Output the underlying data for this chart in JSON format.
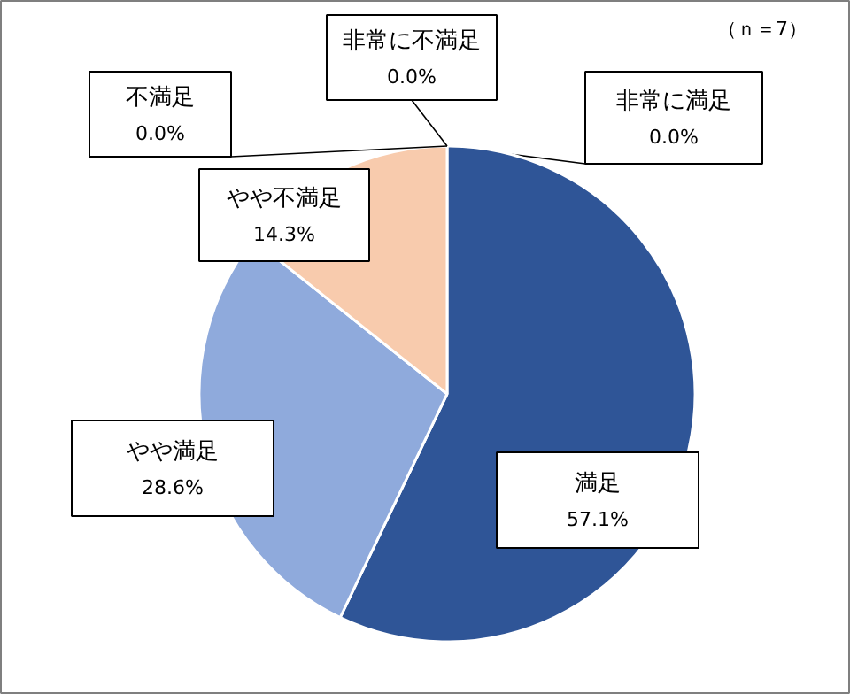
{
  "chart_data": {
    "type": "pie",
    "categories": [
      "非常に満足",
      "満足",
      "やや満足",
      "やや不満足",
      "不満足",
      "非常に不満足"
    ],
    "values": [
      0.0,
      57.1,
      28.6,
      14.3,
      0.0,
      0.0
    ],
    "value_labels": [
      "0.0%",
      "57.1%",
      "28.6%",
      "14.3%",
      "0.0%",
      "0.0%"
    ],
    "colors": [
      "#203864",
      "#2f5597",
      "#8faadc",
      "#f8cbad",
      "#c55a11",
      "#7f7f7f"
    ],
    "annotations": [
      "（ｎ＝7）"
    ]
  }
}
